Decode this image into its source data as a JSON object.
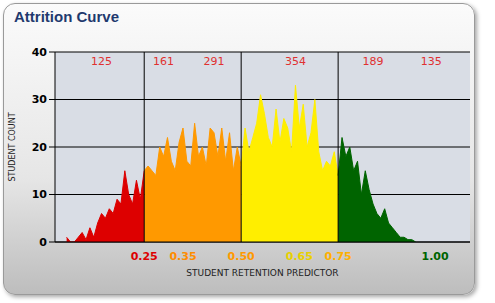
{
  "chart_data": {
    "type": "area",
    "title": "Attrition Curve",
    "x_label": "STUDENT RETENTION PREDICTOR",
    "y_label": "STUDENT COUNT",
    "x": [
      0.05,
      0.06,
      0.07,
      0.08,
      0.09,
      0.1,
      0.11,
      0.12,
      0.13,
      0.14,
      0.15,
      0.16,
      0.17,
      0.18,
      0.19,
      0.2,
      0.21,
      0.22,
      0.23,
      0.24,
      0.25,
      0.26,
      0.27,
      0.28,
      0.29,
      0.3,
      0.31,
      0.32,
      0.33,
      0.34,
      0.35,
      0.36,
      0.37,
      0.38,
      0.39,
      0.4,
      0.41,
      0.42,
      0.43,
      0.44,
      0.45,
      0.46,
      0.47,
      0.48,
      0.49,
      0.5,
      0.51,
      0.52,
      0.53,
      0.54,
      0.55,
      0.56,
      0.57,
      0.58,
      0.59,
      0.6,
      0.61,
      0.62,
      0.63,
      0.64,
      0.65,
      0.66,
      0.67,
      0.68,
      0.69,
      0.7,
      0.71,
      0.72,
      0.73,
      0.74,
      0.75,
      0.76,
      0.77,
      0.78,
      0.79,
      0.8,
      0.81,
      0.82,
      0.83,
      0.84,
      0.85,
      0.86,
      0.87,
      0.88,
      0.89,
      0.9,
      0.91,
      0.92,
      0.93,
      0.94,
      0.95
    ],
    "values": [
      1,
      0,
      0,
      1,
      2,
      0.5,
      3,
      1,
      4,
      6,
      5,
      7,
      6,
      9,
      8,
      15,
      10,
      8,
      13,
      9,
      15,
      16,
      15,
      14,
      20,
      18,
      22,
      17,
      15,
      21,
      24,
      17,
      16,
      25,
      18,
      20,
      16,
      24,
      23,
      18,
      24,
      17,
      23,
      15,
      20,
      16,
      24,
      19,
      22,
      25,
      31,
      27,
      22,
      20,
      28,
      21,
      26,
      24,
      19,
      33,
      24,
      29,
      20,
      23,
      30,
      19,
      15,
      17,
      16,
      19,
      14,
      22,
      18,
      20,
      15,
      17,
      10,
      15,
      11,
      8,
      6,
      5,
      7,
      4,
      3,
      2,
      1,
      1,
      0.5,
      0.5,
      0
    ],
    "bands": [
      {
        "from": 0.05,
        "to": 0.25,
        "color": "#dd0000"
      },
      {
        "from": 0.25,
        "to": 0.5,
        "color": "#ff9900"
      },
      {
        "from": 0.5,
        "to": 0.75,
        "color": "#ffee00"
      },
      {
        "from": 0.75,
        "to": 0.95,
        "color": "#006400"
      }
    ],
    "count_labels": [
      {
        "x": 0.14,
        "value": 125
      },
      {
        "x": 0.3,
        "value": 161
      },
      {
        "x": 0.43,
        "value": 291
      },
      {
        "x": 0.64,
        "value": 354
      },
      {
        "x": 0.84,
        "value": 189
      },
      {
        "x": 0.99,
        "value": 135
      }
    ],
    "xlim": [
      0.02,
      1.09
    ],
    "xticks": [
      {
        "value": 0.25,
        "label": "0.25",
        "color": "#dd0000"
      },
      {
        "value": 0.35,
        "label": "0.35",
        "color": "#ff8c00"
      },
      {
        "value": 0.5,
        "label": "0.50",
        "color": "#ff9900"
      },
      {
        "value": 0.65,
        "label": "0.65",
        "color": "#e8d000"
      },
      {
        "value": 0.75,
        "label": "0.75",
        "color": "#ffb000"
      },
      {
        "value": 1.0,
        "label": "1.00",
        "color": "#006400"
      }
    ],
    "x_gridlines": [
      0.25,
      0.5,
      0.75
    ],
    "ylim": [
      0,
      40
    ],
    "yticks": [
      0,
      10,
      20,
      30,
      40
    ],
    "grid": true
  }
}
